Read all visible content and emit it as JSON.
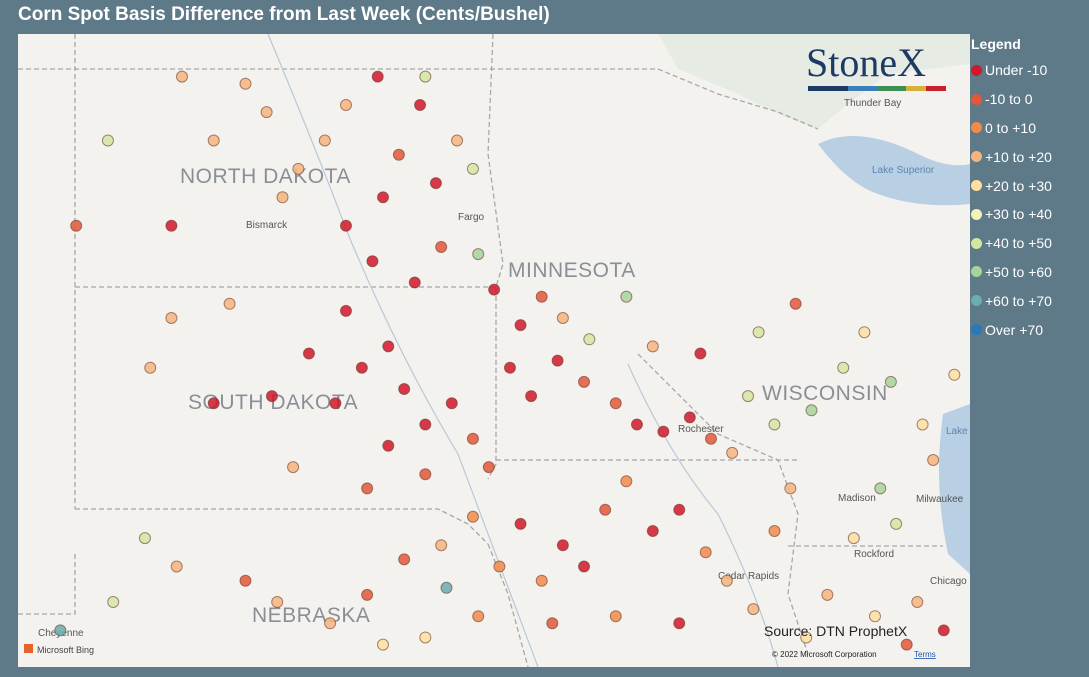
{
  "header": {
    "title": "Corn Spot Basis Difference from Last Week (Cents/Bushel)"
  },
  "logo": "StoneX",
  "legend": {
    "title": "Legend",
    "items": [
      {
        "label": "Under -10",
        "color": "#d0182a"
      },
      {
        "label": "-10 to 0",
        "color": "#e2583a"
      },
      {
        "label": "0 to +10",
        "color": "#f08c4a"
      },
      {
        "label": "+10 to +20",
        "color": "#f6b57c"
      },
      {
        "label": "+20 to +30",
        "color": "#fde0a0"
      },
      {
        "label": "+30 to +40",
        "color": "#f4f2b4"
      },
      {
        "label": "+40 to +50",
        "color": "#d3e7a2"
      },
      {
        "label": "+50 to +60",
        "color": "#a6d39a"
      },
      {
        "label": "+60 to +70",
        "color": "#6aaeb0"
      },
      {
        "label": "Over +70",
        "color": "#2a78b6"
      }
    ]
  },
  "map": {
    "regions": [
      "NORTH DAKOTA",
      "MINNESOTA",
      "SOUTH DAKOTA",
      "WISCONSIN",
      "NEBRASKA"
    ],
    "places": [
      "Bismarck",
      "Fargo",
      "Thunder Bay",
      "Lake Superior",
      "Rochester",
      "Madison",
      "Milwaukee",
      "Rockford",
      "Cedar Rapids",
      "Chicago",
      "Cheyenne",
      "Lake Michigan"
    ],
    "source": "Source: DTN ProphetX",
    "provider": "Microsoft Bing",
    "copyright": "© 2022 Microsoft Corporation",
    "terms": "Terms",
    "points": [
      {
        "lon": -104.4,
        "lat": 46.8,
        "group": 1
      },
      {
        "lon": -102.6,
        "lat": 46.8,
        "group": 0
      },
      {
        "lon": -101.2,
        "lat": 48.8,
        "group": 3
      },
      {
        "lon": -100.8,
        "lat": 48.4,
        "group": 3
      },
      {
        "lon": -100.2,
        "lat": 47.6,
        "group": 3
      },
      {
        "lon": -99.7,
        "lat": 48.0,
        "group": 3
      },
      {
        "lon": -99.3,
        "lat": 48.5,
        "group": 3
      },
      {
        "lon": -100.5,
        "lat": 47.2,
        "group": 3
      },
      {
        "lon": -101.8,
        "lat": 48.0,
        "group": 3
      },
      {
        "lon": -103.8,
        "lat": 48.0,
        "group": 6
      },
      {
        "lon": -102.4,
        "lat": 48.9,
        "group": 3
      },
      {
        "lon": -98.7,
        "lat": 48.9,
        "group": 0
      },
      {
        "lon": -97.9,
        "lat": 48.5,
        "group": 0
      },
      {
        "lon": -98.3,
        "lat": 47.8,
        "group": 1
      },
      {
        "lon": -97.6,
        "lat": 47.4,
        "group": 0
      },
      {
        "lon": -98.6,
        "lat": 47.2,
        "group": 0
      },
      {
        "lon": -99.3,
        "lat": 46.8,
        "group": 0
      },
      {
        "lon": -98.8,
        "lat": 46.3,
        "group": 0
      },
      {
        "lon": -98.0,
        "lat": 46.0,
        "group": 0
      },
      {
        "lon": -97.5,
        "lat": 46.5,
        "group": 1
      },
      {
        "lon": -97.2,
        "lat": 48.0,
        "group": 3
      },
      {
        "lon": -96.9,
        "lat": 47.6,
        "group": 6
      },
      {
        "lon": -96.8,
        "lat": 46.4,
        "group": 7
      },
      {
        "lon": -97.8,
        "lat": 48.9,
        "group": 6
      },
      {
        "lon": -96.5,
        "lat": 45.9,
        "group": 0
      },
      {
        "lon": -96.0,
        "lat": 45.4,
        "group": 0
      },
      {
        "lon": -95.6,
        "lat": 45.8,
        "group": 1
      },
      {
        "lon": -95.2,
        "lat": 45.5,
        "group": 3
      },
      {
        "lon": -94.7,
        "lat": 45.2,
        "group": 6
      },
      {
        "lon": -94.0,
        "lat": 45.8,
        "group": 7
      },
      {
        "lon": -93.5,
        "lat": 45.1,
        "group": 3
      },
      {
        "lon": -96.2,
        "lat": 44.8,
        "group": 0
      },
      {
        "lon": -95.8,
        "lat": 44.4,
        "group": 0
      },
      {
        "lon": -95.3,
        "lat": 44.9,
        "group": 0
      },
      {
        "lon": -94.8,
        "lat": 44.6,
        "group": 1
      },
      {
        "lon": -94.2,
        "lat": 44.3,
        "group": 1
      },
      {
        "lon": -93.8,
        "lat": 44.0,
        "group": 0
      },
      {
        "lon": -93.3,
        "lat": 43.9,
        "group": 0
      },
      {
        "lon": -92.8,
        "lat": 44.1,
        "group": 0
      },
      {
        "lon": -92.4,
        "lat": 43.8,
        "group": 1
      },
      {
        "lon": -92.0,
        "lat": 43.6,
        "group": 3
      },
      {
        "lon": -91.7,
        "lat": 44.4,
        "group": 6
      },
      {
        "lon": -91.2,
        "lat": 44.0,
        "group": 6
      },
      {
        "lon": -92.6,
        "lat": 45.0,
        "group": 0
      },
      {
        "lon": -100.7,
        "lat": 44.4,
        "group": 0
      },
      {
        "lon": -100.0,
        "lat": 45.0,
        "group": 0
      },
      {
        "lon": -99.5,
        "lat": 44.3,
        "group": 0
      },
      {
        "lon": -99.0,
        "lat": 44.8,
        "group": 0
      },
      {
        "lon": -98.5,
        "lat": 45.1,
        "group": 0
      },
      {
        "lon": -98.2,
        "lat": 44.5,
        "group": 0
      },
      {
        "lon": -97.8,
        "lat": 44.0,
        "group": 0
      },
      {
        "lon": -97.3,
        "lat": 44.3,
        "group": 0
      },
      {
        "lon": -96.9,
        "lat": 43.8,
        "group": 1
      },
      {
        "lon": -96.6,
        "lat": 43.4,
        "group": 1
      },
      {
        "lon": -99.3,
        "lat": 45.6,
        "group": 0
      },
      {
        "lon": -101.5,
        "lat": 45.7,
        "group": 3
      },
      {
        "lon": -102.6,
        "lat": 45.5,
        "group": 3
      },
      {
        "lon": -103.0,
        "lat": 44.8,
        "group": 3
      },
      {
        "lon": -101.8,
        "lat": 44.3,
        "group": 0
      },
      {
        "lon": -100.3,
        "lat": 43.4,
        "group": 3
      },
      {
        "lon": -98.9,
        "lat": 43.1,
        "group": 1
      },
      {
        "lon": -97.8,
        "lat": 43.3,
        "group": 1
      },
      {
        "lon": -98.5,
        "lat": 43.7,
        "group": 0
      },
      {
        "lon": -104.7,
        "lat": 41.1,
        "group": 8
      },
      {
        "lon": -103.7,
        "lat": 41.5,
        "group": 6
      },
      {
        "lon": -103.1,
        "lat": 42.4,
        "group": 6
      },
      {
        "lon": -102.5,
        "lat": 42.0,
        "group": 3
      },
      {
        "lon": -101.2,
        "lat": 41.8,
        "group": 1
      },
      {
        "lon": -100.6,
        "lat": 41.5,
        "group": 3
      },
      {
        "lon": -99.6,
        "lat": 41.2,
        "group": 3
      },
      {
        "lon": -98.9,
        "lat": 41.6,
        "group": 1
      },
      {
        "lon": -98.6,
        "lat": 40.9,
        "group": 4
      },
      {
        "lon": -97.8,
        "lat": 41.0,
        "group": 4
      },
      {
        "lon": -97.4,
        "lat": 41.7,
        "group": 8
      },
      {
        "lon": -96.8,
        "lat": 41.3,
        "group": 2
      },
      {
        "lon": -96.4,
        "lat": 42.0,
        "group": 2
      },
      {
        "lon": -96.0,
        "lat": 42.6,
        "group": 0
      },
      {
        "lon": -95.6,
        "lat": 41.8,
        "group": 2
      },
      {
        "lon": -95.2,
        "lat": 42.3,
        "group": 0
      },
      {
        "lon": -94.8,
        "lat": 42.0,
        "group": 0
      },
      {
        "lon": -94.4,
        "lat": 42.8,
        "group": 1
      },
      {
        "lon": -94.0,
        "lat": 43.2,
        "group": 2
      },
      {
        "lon": -93.5,
        "lat": 42.5,
        "group": 0
      },
      {
        "lon": -93.0,
        "lat": 42.8,
        "group": 0
      },
      {
        "lon": -92.5,
        "lat": 42.2,
        "group": 2
      },
      {
        "lon": -92.1,
        "lat": 41.8,
        "group": 3
      },
      {
        "lon": -91.6,
        "lat": 41.4,
        "group": 3
      },
      {
        "lon": -91.2,
        "lat": 42.5,
        "group": 2
      },
      {
        "lon": -90.9,
        "lat": 43.1,
        "group": 3
      },
      {
        "lon": -95.4,
        "lat": 41.2,
        "group": 1
      },
      {
        "lon": -94.2,
        "lat": 41.3,
        "group": 2
      },
      {
        "lon": -93.0,
        "lat": 41.2,
        "group": 0
      },
      {
        "lon": -96.9,
        "lat": 42.7,
        "group": 2
      },
      {
        "lon": -97.5,
        "lat": 42.3,
        "group": 3
      },
      {
        "lon": -98.2,
        "lat": 42.1,
        "group": 1
      },
      {
        "lon": -90.5,
        "lat": 44.2,
        "group": 7
      },
      {
        "lon": -89.9,
        "lat": 44.8,
        "group": 6
      },
      {
        "lon": -89.5,
        "lat": 45.3,
        "group": 4
      },
      {
        "lon": -89.0,
        "lat": 44.6,
        "group": 7
      },
      {
        "lon": -88.4,
        "lat": 44.0,
        "group": 4
      },
      {
        "lon": -88.2,
        "lat": 43.5,
        "group": 3
      },
      {
        "lon": -89.2,
        "lat": 43.1,
        "group": 7
      },
      {
        "lon": -88.9,
        "lat": 42.6,
        "group": 6
      },
      {
        "lon": -89.7,
        "lat": 42.4,
        "group": 4
      },
      {
        "lon": -90.2,
        "lat": 41.6,
        "group": 3
      },
      {
        "lon": -89.3,
        "lat": 41.3,
        "group": 4
      },
      {
        "lon": -88.5,
        "lat": 41.5,
        "group": 3
      },
      {
        "lon": -88.0,
        "lat": 41.1,
        "group": 0
      },
      {
        "lon": -88.7,
        "lat": 40.9,
        "group": 1
      },
      {
        "lon": -90.6,
        "lat": 41.0,
        "group": 4
      },
      {
        "lon": -87.8,
        "lat": 44.7,
        "group": 4
      },
      {
        "lon": -91.5,
        "lat": 45.3,
        "group": 6
      },
      {
        "lon": -90.8,
        "lat": 45.7,
        "group": 1
      }
    ]
  }
}
